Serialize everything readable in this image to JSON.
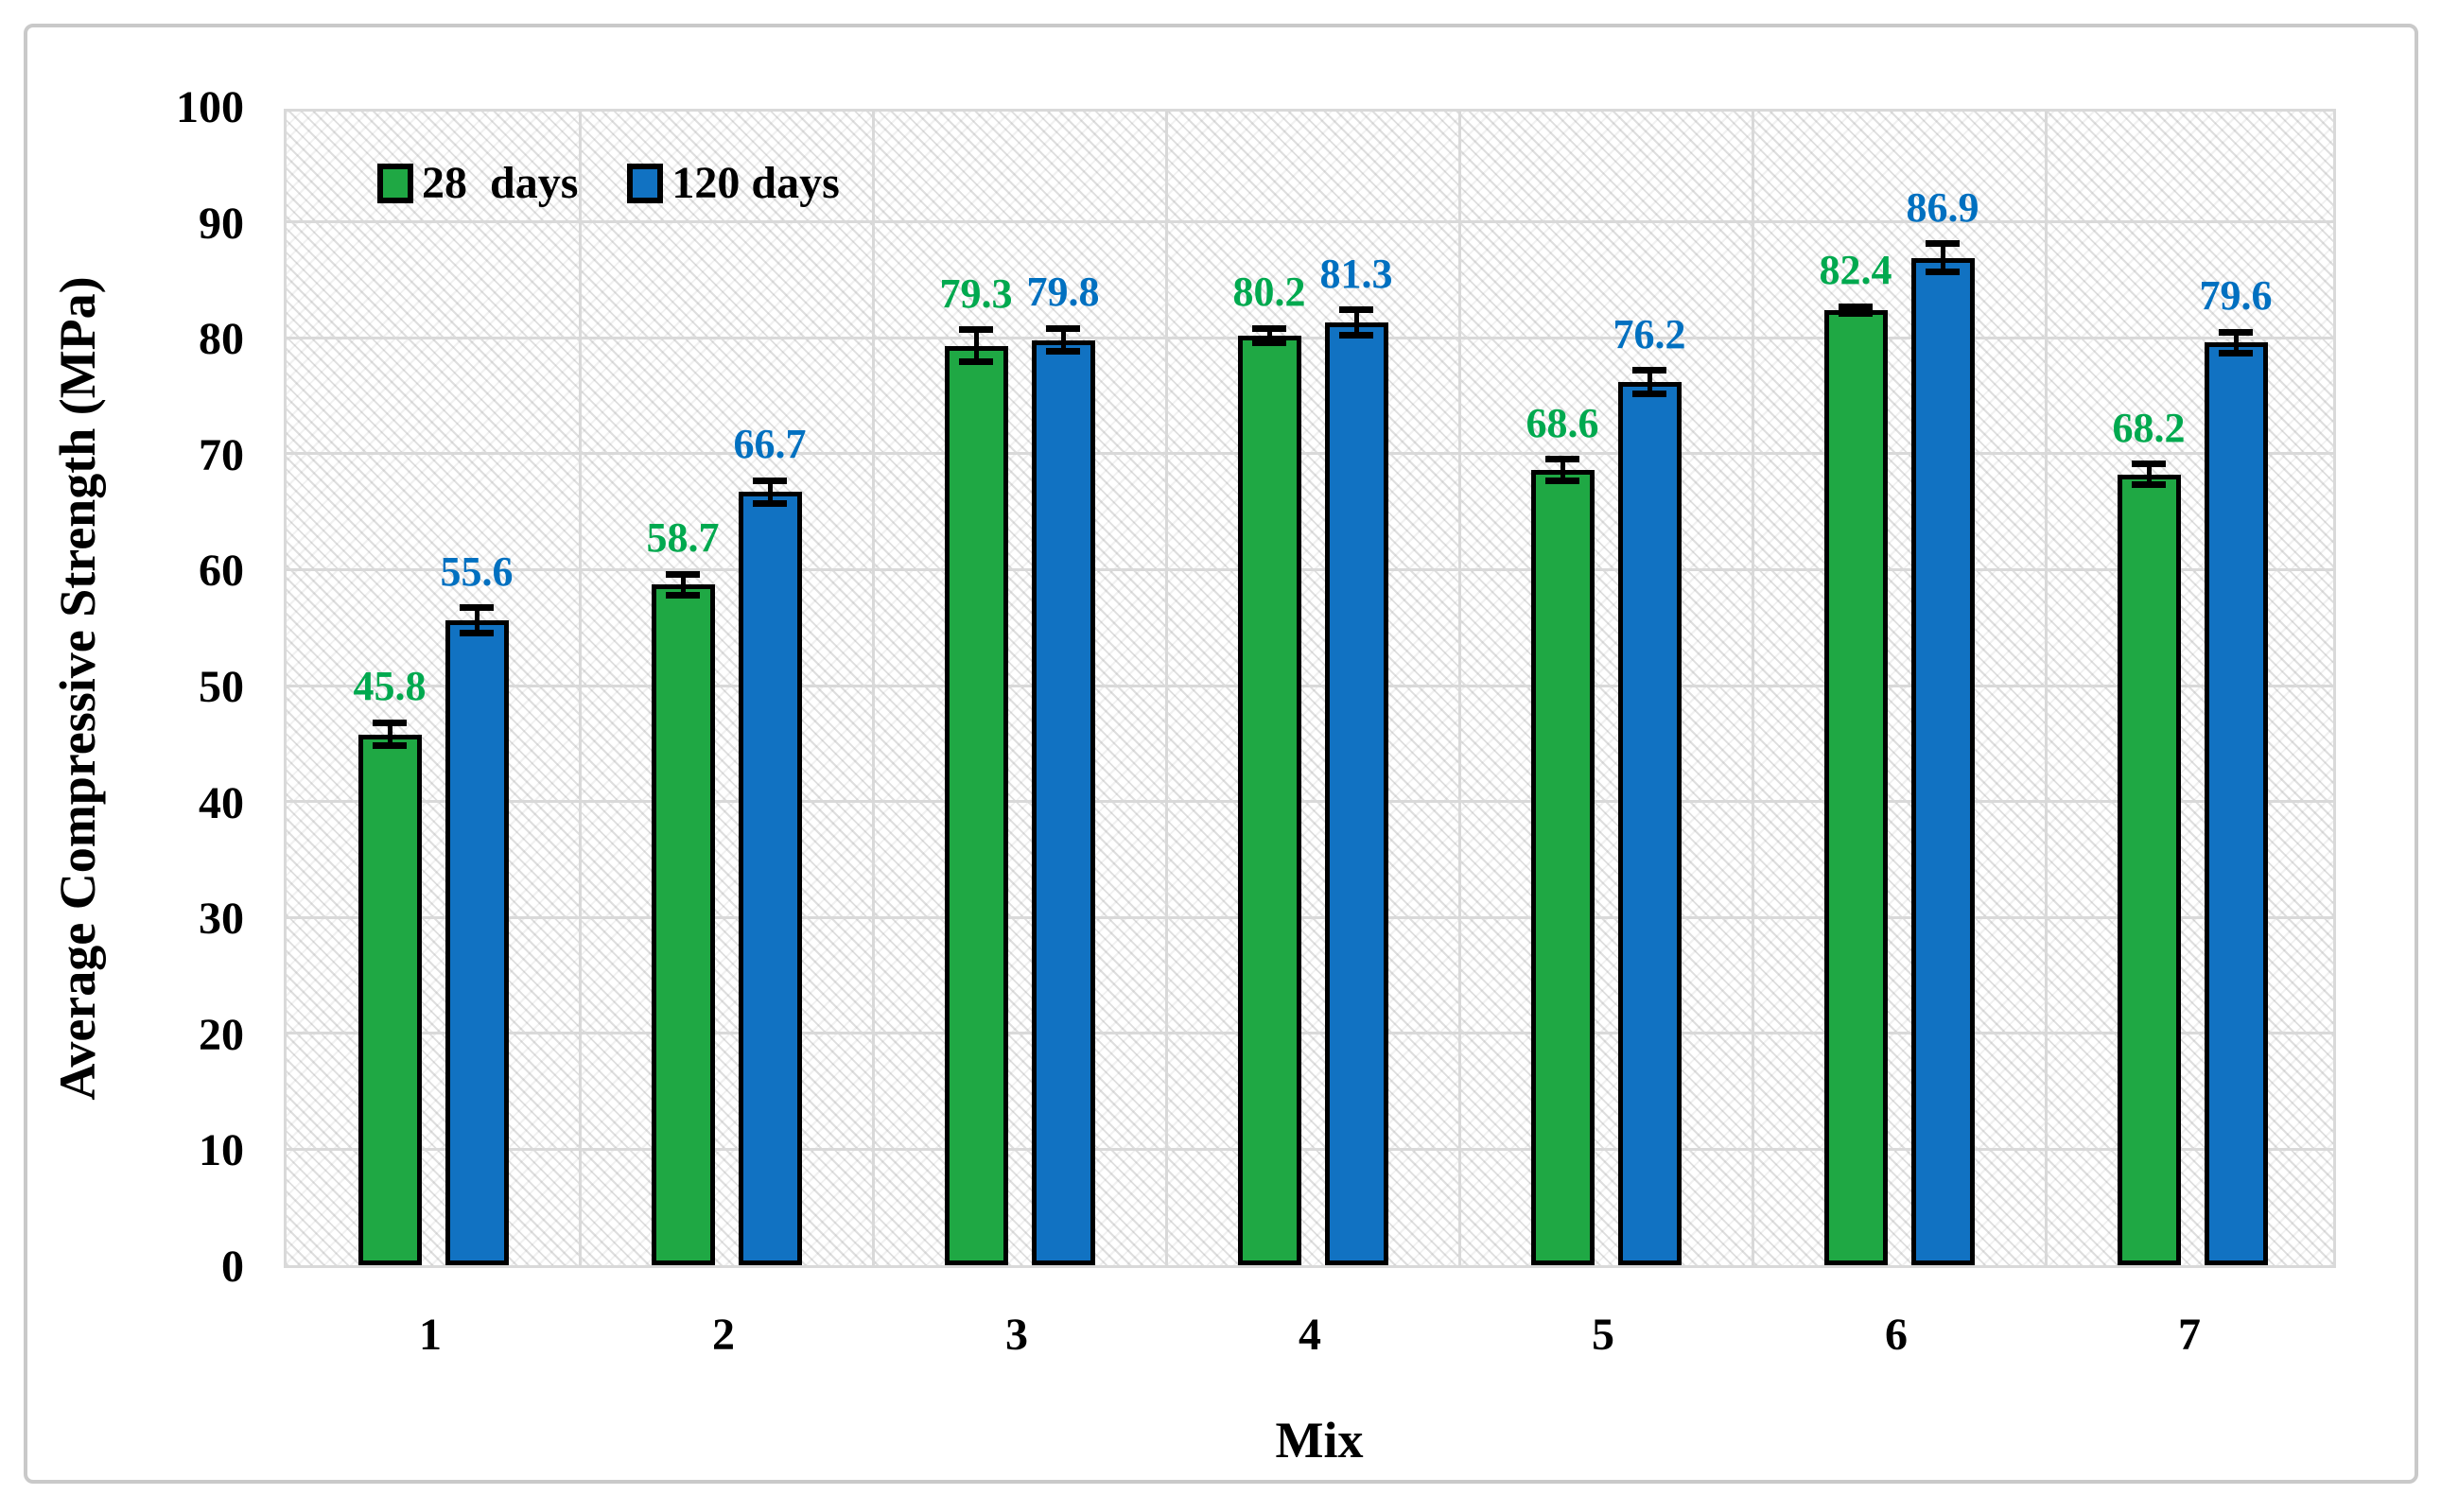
{
  "figure": {
    "background": "#ffffff",
    "frame_color": "#c9c9c9"
  },
  "chart_data": {
    "type": "bar",
    "title": "",
    "xlabel": "Mix",
    "ylabel": "Average Compressive Strength (MPa)",
    "categories": [
      "1",
      "2",
      "3",
      "4",
      "5",
      "6",
      "7"
    ],
    "series": [
      {
        "name": "28  days",
        "bar_color": "#1fa844",
        "label_color": "#00a94f",
        "values": [
          45.8,
          58.7,
          79.3,
          80.2,
          68.6,
          82.4,
          68.2
        ],
        "errors": [
          1.0,
          0.9,
          1.4,
          0.6,
          0.9,
          0.3,
          0.9
        ]
      },
      {
        "name": "120 days",
        "bar_color": "#1172c2",
        "label_color": "#0070c0",
        "values": [
          55.6,
          66.7,
          79.8,
          81.3,
          76.2,
          86.9,
          79.6
        ],
        "errors": [
          1.1,
          1.0,
          1.0,
          1.1,
          1.0,
          1.2,
          0.9
        ]
      }
    ],
    "ylim": [
      0,
      100
    ],
    "ytick_step": 10,
    "yticks": [
      0,
      10,
      20,
      30,
      40,
      50,
      60,
      70,
      80,
      90,
      100
    ],
    "grid": true,
    "error_bars": true,
    "gridline_color": "#d9d9d9",
    "bar_outline_color": "#000000",
    "legend_position": "top-left-inside"
  }
}
